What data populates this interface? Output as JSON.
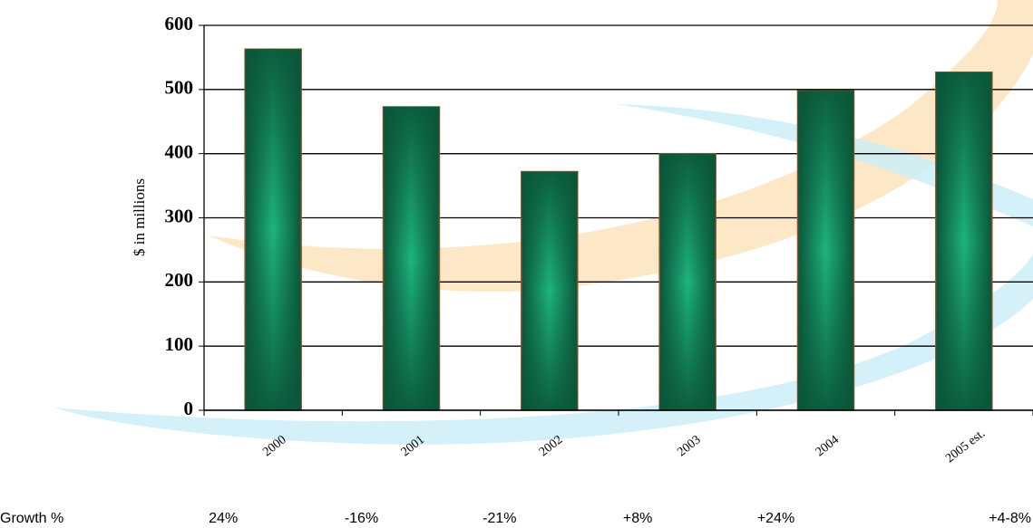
{
  "chart_data": {
    "type": "bar",
    "y_label": "$ in millions",
    "categories": [
      "2000",
      "2001",
      "2002",
      "2003",
      "2004",
      "2005 est."
    ],
    "values": [
      563,
      473,
      372,
      400,
      498,
      527
    ],
    "color": "#0f6b48",
    "ylim": [
      0,
      600
    ],
    "yticks": [
      0,
      100,
      200,
      300,
      400,
      500,
      600
    ],
    "grid": true
  },
  "growth": {
    "label": "Growth %",
    "values": [
      "24%",
      "-16%",
      "-21%",
      "+8%",
      "+24%",
      "+4-8%"
    ]
  }
}
